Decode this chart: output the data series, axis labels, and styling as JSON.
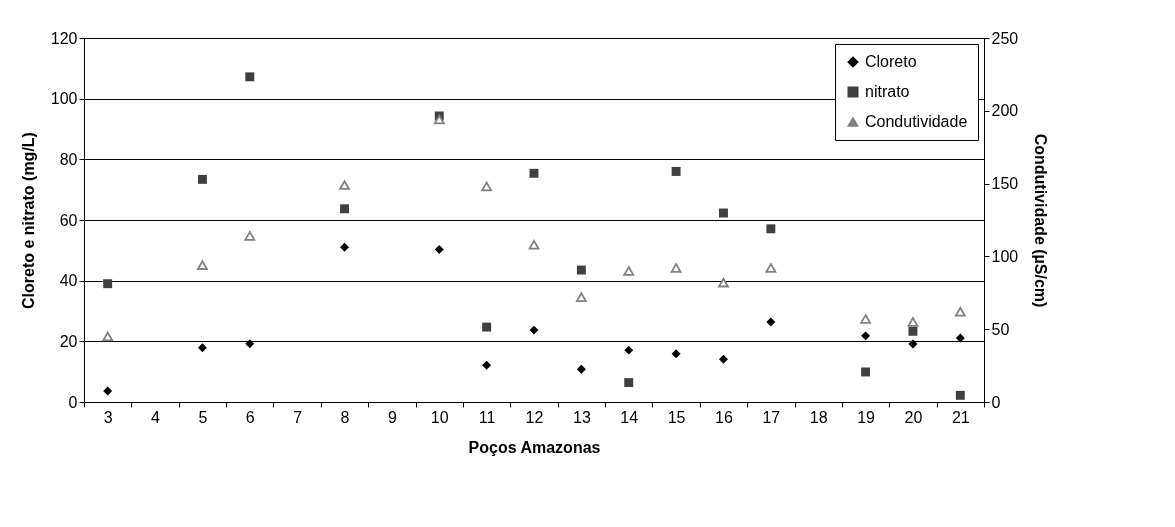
{
  "chart_data": {
    "type": "scatter",
    "xlabel": "Poços Amazonas",
    "ylabel": "Cloreto e nitrato (mg/L)",
    "y2label": "Condutividade (µS/cm)",
    "categories": [
      "3",
      "4",
      "5",
      "6",
      "7",
      "8",
      "9",
      "10",
      "11",
      "12",
      "13",
      "14",
      "15",
      "16",
      "17",
      "18",
      "19",
      "20",
      "21"
    ],
    "series": [
      {
        "name": "Cloreto",
        "color": "#000000",
        "marker": "diamond",
        "values": [
          3.6,
          null,
          17.9,
          19.2,
          null,
          51,
          null,
          50.3,
          12.1,
          23.7,
          10.8,
          17.1,
          15.9,
          14.1,
          26.4,
          null,
          21.8,
          19.1,
          21.1
        ]
      },
      {
        "name": "nitrato",
        "color": "#404040",
        "marker": "square",
        "values": [
          39,
          null,
          73.4,
          107.2,
          null,
          63.7,
          null,
          94.3,
          24.7,
          75.4,
          43.5,
          6.4,
          76.0,
          62.3,
          57.1,
          null,
          9.9,
          23.3,
          2.2
        ]
      },
      {
        "name": "Condutividade",
        "color": "#808080",
        "marker": "triangle",
        "axis": "y2",
        "values": [
          45,
          null,
          94,
          114,
          null,
          149,
          null,
          194,
          148,
          108,
          72,
          90,
          92,
          82,
          92,
          null,
          57,
          55,
          62
        ]
      }
    ],
    "ylim": [
      0,
      120
    ],
    "yticks": [
      0,
      20,
      40,
      60,
      80,
      100,
      120
    ],
    "y2lim": [
      0,
      250
    ],
    "y2ticks": [
      0,
      50,
      100,
      150,
      200,
      250
    ],
    "grid": "y",
    "legend": "top right"
  }
}
